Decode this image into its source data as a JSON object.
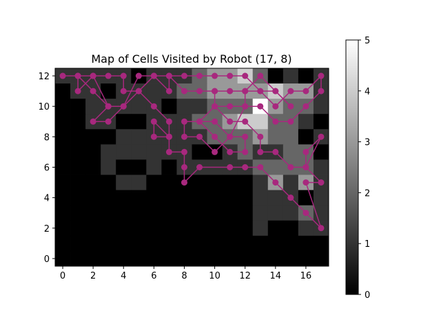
{
  "chart_data": {
    "type": "heatmap",
    "title": "Map of Cells Visited by Robot (17, 8)",
    "xlabel": "",
    "ylabel": "",
    "grid_cols": 18,
    "grid_rows": 13,
    "xlim": [
      -0.5,
      17.5
    ],
    "ylim": [
      -0.5,
      12.5
    ],
    "x_ticks": [
      0,
      2,
      4,
      6,
      8,
      10,
      12,
      14,
      16
    ],
    "y_ticks": [
      0,
      2,
      4,
      6,
      8,
      10,
      12
    ],
    "colorbar": {
      "min": 0,
      "max": 5,
      "ticks": [
        0,
        1,
        2,
        3,
        4,
        5
      ],
      "cmap": "gray"
    },
    "visit_counts_top_row_first": [
      [
        1,
        1,
        1,
        1,
        1,
        0,
        1,
        1,
        1,
        2,
        3,
        3,
        4,
        2,
        0,
        1,
        0,
        1
      ],
      [
        0,
        1,
        1,
        0,
        1,
        1,
        1,
        1,
        2,
        2,
        3,
        3,
        3,
        3,
        4,
        3,
        3,
        1
      ],
      [
        0,
        0,
        1,
        1,
        1,
        1,
        1,
        0,
        1,
        1,
        2,
        2,
        2,
        5,
        3,
        2,
        2,
        1
      ],
      [
        0,
        0,
        1,
        1,
        0,
        0,
        1,
        1,
        1,
        2,
        2,
        3,
        4,
        4,
        2,
        2,
        1,
        0
      ],
      [
        0,
        0,
        0,
        0,
        1,
        1,
        1,
        1,
        1,
        1,
        2,
        2,
        2,
        3,
        2,
        2,
        0,
        1
      ],
      [
        0,
        0,
        0,
        1,
        1,
        1,
        1,
        1,
        1,
        0,
        0,
        1,
        2,
        1,
        1,
        2,
        2,
        0
      ],
      [
        0,
        0,
        0,
        1,
        0,
        0,
        1,
        0,
        1,
        1,
        1,
        1,
        1,
        2,
        2,
        2,
        2,
        1
      ],
      [
        0,
        0,
        0,
        0,
        1,
        1,
        0,
        0,
        0,
        0,
        0,
        0,
        0,
        1,
        3,
        1,
        3,
        1
      ],
      [
        0,
        0,
        0,
        0,
        0,
        0,
        0,
        0,
        0,
        0,
        0,
        0,
        0,
        1,
        1,
        1,
        0,
        1
      ],
      [
        0,
        0,
        0,
        0,
        0,
        0,
        0,
        0,
        0,
        0,
        0,
        0,
        0,
        1,
        1,
        1,
        2,
        1
      ],
      [
        0,
        0,
        0,
        0,
        0,
        0,
        0,
        0,
        0,
        0,
        0,
        0,
        0,
        1,
        0,
        0,
        1,
        1
      ],
      [
        0,
        0,
        0,
        0,
        0,
        0,
        0,
        0,
        0,
        0,
        0,
        0,
        0,
        0,
        0,
        0,
        0,
        0
      ],
      [
        0,
        0,
        0,
        0,
        0,
        0,
        0,
        0,
        0,
        0,
        0,
        0,
        0,
        0,
        0,
        0,
        0,
        0
      ]
    ],
    "path_color": "#a8287e",
    "path": [
      [
        0,
        12
      ],
      [
        1,
        12
      ],
      [
        2,
        12
      ],
      [
        3,
        12
      ],
      [
        4,
        12
      ],
      [
        4,
        11
      ],
      [
        5,
        11
      ],
      [
        6,
        12
      ],
      [
        7,
        12
      ],
      [
        8,
        12
      ],
      [
        9,
        12
      ],
      [
        10,
        12
      ],
      [
        11,
        12
      ],
      [
        12,
        12
      ],
      [
        13,
        11
      ],
      [
        14,
        11
      ],
      [
        15,
        10
      ],
      [
        14,
        11
      ],
      [
        13,
        12
      ],
      [
        12,
        11
      ],
      [
        11,
        11
      ],
      [
        10,
        11
      ],
      [
        9,
        11
      ],
      [
        8,
        11
      ],
      [
        7,
        12
      ],
      [
        7,
        11
      ],
      [
        6,
        12
      ],
      [
        5,
        12
      ],
      [
        4,
        10
      ],
      [
        3,
        9
      ],
      [
        2,
        9
      ],
      [
        3,
        10
      ],
      [
        2,
        11
      ],
      [
        1,
        12
      ],
      [
        1,
        11
      ],
      [
        2,
        12
      ],
      [
        3,
        10
      ],
      [
        4,
        10
      ],
      [
        5,
        11
      ],
      [
        6,
        10
      ],
      [
        7,
        9
      ],
      [
        7,
        8
      ],
      [
        6,
        8
      ],
      [
        6,
        9
      ],
      [
        7,
        8
      ],
      [
        7,
        7
      ],
      [
        8,
        7
      ],
      [
        8,
        6
      ],
      [
        8,
        5
      ],
      [
        9,
        6
      ],
      [
        11,
        6
      ],
      [
        12,
        6
      ],
      [
        13,
        6
      ],
      [
        14,
        5
      ],
      [
        15,
        4
      ],
      [
        16,
        3
      ],
      [
        17,
        2
      ],
      [
        16,
        5
      ],
      [
        17,
        5
      ],
      [
        16,
        6
      ],
      [
        16,
        7
      ],
      [
        17,
        8
      ],
      [
        16,
        6
      ],
      [
        15,
        6
      ],
      [
        14,
        7
      ],
      [
        13,
        7
      ],
      [
        13,
        8
      ],
      [
        12,
        9
      ],
      [
        11,
        9
      ],
      [
        10,
        10
      ],
      [
        11,
        10
      ],
      [
        12,
        10
      ],
      [
        13,
        10
      ],
      [
        14,
        9
      ],
      [
        15,
        9
      ],
      [
        16,
        10
      ],
      [
        17,
        11
      ],
      [
        17,
        12
      ],
      [
        16,
        11
      ],
      [
        15,
        11
      ],
      [
        14,
        10
      ],
      [
        13,
        11
      ],
      [
        12,
        11
      ],
      [
        12,
        10
      ],
      [
        11,
        8
      ],
      [
        10,
        7
      ],
      [
        9,
        8
      ],
      [
        8,
        8
      ],
      [
        8,
        9
      ],
      [
        9,
        9
      ],
      [
        10,
        9
      ],
      [
        11,
        8
      ],
      [
        12,
        8
      ],
      [
        12,
        7
      ],
      [
        11,
        7
      ],
      [
        10,
        8
      ],
      [
        9,
        9
      ],
      [
        10,
        10
      ],
      [
        10,
        11
      ]
    ]
  }
}
